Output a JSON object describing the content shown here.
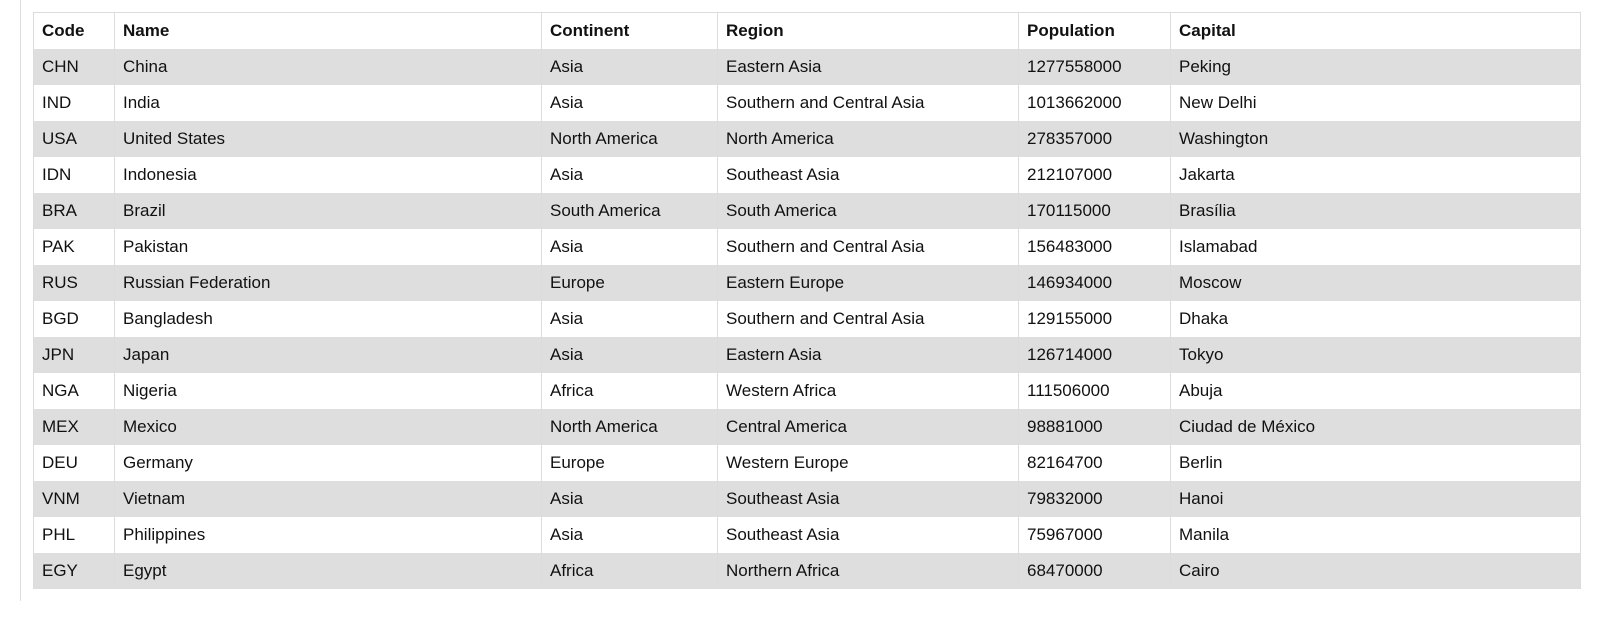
{
  "table": {
    "headers": [
      "Code",
      "Name",
      "Continent",
      "Region",
      "Population",
      "Capital"
    ],
    "rows": [
      [
        "CHN",
        "China",
        "Asia",
        "Eastern Asia",
        "1277558000",
        "Peking"
      ],
      [
        "IND",
        "India",
        "Asia",
        "Southern and Central Asia",
        "1013662000",
        "New Delhi"
      ],
      [
        "USA",
        "United States",
        "North America",
        "North America",
        "278357000",
        "Washington"
      ],
      [
        "IDN",
        "Indonesia",
        "Asia",
        "Southeast Asia",
        "212107000",
        "Jakarta"
      ],
      [
        "BRA",
        "Brazil",
        "South America",
        "South America",
        "170115000",
        "Brasília"
      ],
      [
        "PAK",
        "Pakistan",
        "Asia",
        "Southern and Central Asia",
        "156483000",
        "Islamabad"
      ],
      [
        "RUS",
        "Russian Federation",
        "Europe",
        "Eastern Europe",
        "146934000",
        "Moscow"
      ],
      [
        "BGD",
        "Bangladesh",
        "Asia",
        "Southern and Central Asia",
        "129155000",
        "Dhaka"
      ],
      [
        "JPN",
        "Japan",
        "Asia",
        "Eastern Asia",
        "126714000",
        "Tokyo"
      ],
      [
        "NGA",
        "Nigeria",
        "Africa",
        "Western Africa",
        "111506000",
        "Abuja"
      ],
      [
        "MEX",
        "Mexico",
        "North America",
        "Central America",
        "98881000",
        "Ciudad de México"
      ],
      [
        "DEU",
        "Germany",
        "Europe",
        "Western Europe",
        "82164700",
        "Berlin"
      ],
      [
        "VNM",
        "Vietnam",
        "Asia",
        "Southeast Asia",
        "79832000",
        "Hanoi"
      ],
      [
        "PHL",
        "Philippines",
        "Asia",
        "Southeast Asia",
        "75967000",
        "Manila"
      ],
      [
        "EGY",
        "Egypt",
        "Africa",
        "Northern Africa",
        "68470000",
        "Cairo"
      ]
    ]
  }
}
